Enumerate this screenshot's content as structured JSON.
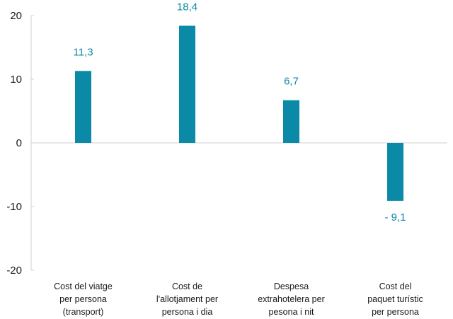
{
  "chart_data": {
    "type": "bar",
    "categories": [
      [
        "Cost del viatge",
        "per persona",
        "(transport)"
      ],
      [
        "Cost de",
        "l'allotjament per",
        "persona i dia"
      ],
      [
        "Despesa",
        "extrahotelera per",
        "pesona i nit"
      ],
      [
        "Cost del",
        "paquet turístic",
        "per persona"
      ]
    ],
    "values": [
      11.3,
      18.4,
      6.7,
      -9.1
    ],
    "data_labels": [
      "11,3",
      "18,4",
      "6,7",
      "- 9,1"
    ],
    "yticks": [
      20,
      10,
      0,
      -10,
      -20
    ],
    "ytick_labels": [
      "20",
      "10",
      "0",
      "-10",
      "-20"
    ],
    "ylim": [
      -20,
      20
    ],
    "title": "",
    "xlabel": "",
    "ylabel": "",
    "grid": false,
    "bar_color": "#0a8aa6",
    "label_color": "#0a8aa6"
  }
}
